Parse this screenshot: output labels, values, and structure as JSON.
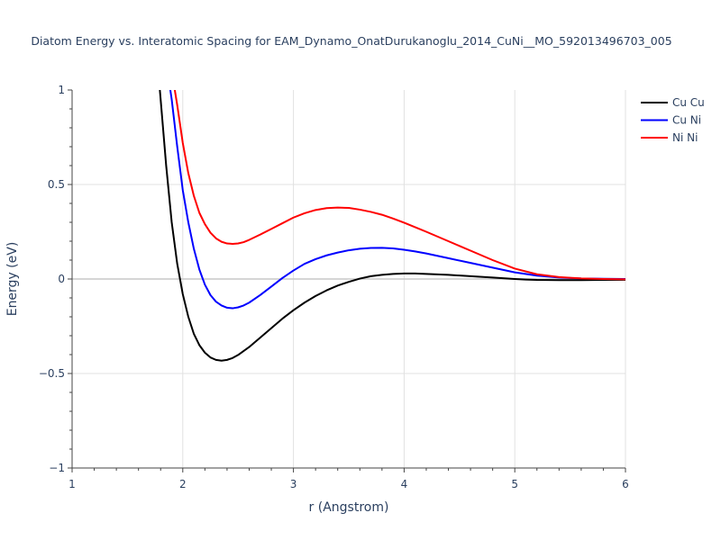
{
  "chart_data": {
    "type": "line",
    "title": "Diatom Energy vs. Interatomic Spacing for EAM_Dynamo_OnatDurukanoglu_2014_CuNi__MO_592013496703_005",
    "xlabel": "r (Angstrom)",
    "ylabel": "Energy (eV)",
    "xlim": [
      1,
      6
    ],
    "ylim": [
      -1,
      1
    ],
    "x_ticks": [
      "1",
      "2",
      "3",
      "4",
      "5",
      "6"
    ],
    "y_ticks": [
      "−1",
      "−0.5",
      "0",
      "0.5",
      "1"
    ],
    "y_tick_values": [
      -1,
      -0.5,
      0,
      0.5,
      1
    ],
    "grid": true,
    "legend_position": "top-right",
    "series": [
      {
        "name": "Cu Cu",
        "color": "#000000",
        "x": [
          1.75,
          1.8,
          1.85,
          1.9,
          1.95,
          2.0,
          2.05,
          2.1,
          2.15,
          2.2,
          2.25,
          2.3,
          2.35,
          2.4,
          2.45,
          2.5,
          2.6,
          2.7,
          2.8,
          2.9,
          3.0,
          3.1,
          3.2,
          3.3,
          3.4,
          3.5,
          3.6,
          3.7,
          3.8,
          3.9,
          4.0,
          4.1,
          4.2,
          4.4,
          4.6,
          4.8,
          5.0,
          5.1,
          5.2,
          5.4,
          5.6,
          5.8,
          6.0
        ],
        "y": [
          1.3,
          0.95,
          0.6,
          0.3,
          0.08,
          -0.08,
          -0.2,
          -0.29,
          -0.35,
          -0.39,
          -0.415,
          -0.428,
          -0.432,
          -0.428,
          -0.418,
          -0.402,
          -0.36,
          -0.31,
          -0.26,
          -0.21,
          -0.165,
          -0.125,
          -0.09,
          -0.06,
          -0.035,
          -0.015,
          0.002,
          0.015,
          0.022,
          0.027,
          0.029,
          0.029,
          0.027,
          0.022,
          0.015,
          0.008,
          0.0,
          -0.003,
          -0.005,
          -0.006,
          -0.006,
          -0.005,
          -0.004
        ]
      },
      {
        "name": "Cu Ni",
        "color": "#0000ff",
        "x": [
          1.85,
          1.9,
          1.95,
          2.0,
          2.05,
          2.1,
          2.15,
          2.2,
          2.25,
          2.3,
          2.35,
          2.4,
          2.45,
          2.5,
          2.55,
          2.6,
          2.7,
          2.8,
          2.9,
          3.0,
          3.1,
          3.2,
          3.3,
          3.4,
          3.5,
          3.6,
          3.7,
          3.8,
          3.9,
          4.0,
          4.1,
          4.2,
          4.4,
          4.6,
          4.8,
          5.0,
          5.2,
          5.4,
          5.6,
          5.8,
          6.0
        ],
        "y": [
          1.15,
          0.95,
          0.7,
          0.47,
          0.3,
          0.16,
          0.05,
          -0.03,
          -0.085,
          -0.12,
          -0.14,
          -0.152,
          -0.155,
          -0.15,
          -0.14,
          -0.125,
          -0.085,
          -0.04,
          0.005,
          0.045,
          0.08,
          0.105,
          0.125,
          0.14,
          0.152,
          0.16,
          0.164,
          0.165,
          0.162,
          0.155,
          0.146,
          0.135,
          0.11,
          0.085,
          0.06,
          0.035,
          0.018,
          0.008,
          0.003,
          0.001,
          0.0
        ]
      },
      {
        "name": "Ni Ni",
        "color": "#ff0000",
        "x": [
          1.9,
          1.95,
          2.0,
          2.05,
          2.1,
          2.15,
          2.2,
          2.25,
          2.3,
          2.35,
          2.4,
          2.45,
          2.5,
          2.55,
          2.6,
          2.7,
          2.8,
          2.9,
          3.0,
          3.1,
          3.2,
          3.3,
          3.4,
          3.5,
          3.6,
          3.7,
          3.8,
          3.9,
          4.0,
          4.2,
          4.4,
          4.6,
          4.8,
          5.0,
          5.2,
          5.4,
          5.6,
          5.8,
          6.0
        ],
        "y": [
          1.1,
          0.92,
          0.72,
          0.56,
          0.44,
          0.35,
          0.29,
          0.245,
          0.215,
          0.197,
          0.188,
          0.186,
          0.188,
          0.195,
          0.207,
          0.235,
          0.265,
          0.295,
          0.325,
          0.348,
          0.365,
          0.375,
          0.378,
          0.376,
          0.367,
          0.355,
          0.34,
          0.32,
          0.298,
          0.25,
          0.2,
          0.15,
          0.1,
          0.055,
          0.025,
          0.01,
          0.003,
          0.0,
          -0.002
        ]
      }
    ]
  }
}
